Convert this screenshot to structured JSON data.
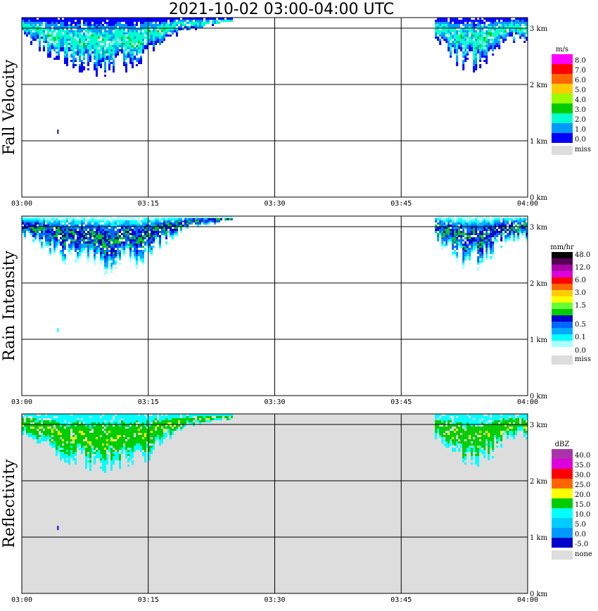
{
  "title": "2021-10-02   03:00-04:00 UTC",
  "x_ticks": [
    "03:00",
    "03:15",
    "03:30",
    "03:45",
    "04:00"
  ],
  "y_ticks": [
    "0 km",
    "1 km",
    "2 km",
    "3 km"
  ],
  "panels": [
    {
      "label": "Fall Velocity",
      "unit": "m/s",
      "background": "#ffffff",
      "legend": [
        {
          "label": "8.0",
          "color": "#ff00ff"
        },
        {
          "label": "7.0",
          "color": "#ff0000"
        },
        {
          "label": "6.0",
          "color": "#ff6600"
        },
        {
          "label": "5.0",
          "color": "#ffcc00"
        },
        {
          "label": "4.0",
          "color": "#99ff00"
        },
        {
          "label": "3.0",
          "color": "#00cc00"
        },
        {
          "label": "2.0",
          "color": "#00ffcc"
        },
        {
          "label": "1.0",
          "color": "#0099ff"
        },
        {
          "label": "0.0",
          "color": "#0000ff"
        }
      ],
      "miss_label": "miss",
      "miss_color": "#dddddd"
    },
    {
      "label": "Rain Intensity",
      "unit": "mm/hr",
      "background": "#ffffff",
      "legend": [
        {
          "label": "48.0",
          "color": "#000000"
        },
        {
          "label": "",
          "color": "#550055"
        },
        {
          "label": "12.0",
          "color": "#aa00aa"
        },
        {
          "label": "",
          "color": "#dd00dd"
        },
        {
          "label": "6.0",
          "color": "#ff0000"
        },
        {
          "label": "",
          "color": "#ff6600"
        },
        {
          "label": "3.0",
          "color": "#ffcc00"
        },
        {
          "label": "",
          "color": "#ffff00"
        },
        {
          "label": "1.5",
          "color": "#66ff33"
        },
        {
          "label": "",
          "color": "#00cc00"
        },
        {
          "label": "",
          "color": "#0000cc"
        },
        {
          "label": "0.5",
          "color": "#0066ff"
        },
        {
          "label": "",
          "color": "#00aaff"
        },
        {
          "label": "0.1",
          "color": "#00ffff"
        },
        {
          "label": "",
          "color": "#aaffff"
        }
      ],
      "zero_label": "0.0",
      "miss_label": "miss",
      "miss_color": "#dddddd"
    },
    {
      "label": "Reflectivity",
      "unit": "dBZ",
      "background": "#dddddd",
      "legend": [
        {
          "label": "40.0",
          "color": "#aa33aa"
        },
        {
          "label": "35.0",
          "color": "#dd00dd"
        },
        {
          "label": "30.0",
          "color": "#ff0000"
        },
        {
          "label": "25.0",
          "color": "#ff6600"
        },
        {
          "label": "20.0",
          "color": "#ffff00"
        },
        {
          "label": "15.0",
          "color": "#00cc00"
        },
        {
          "label": "10.0",
          "color": "#00ffff"
        },
        {
          "label": "5.0",
          "color": "#00ccff"
        },
        {
          "label": "0.0",
          "color": "#0099ff"
        },
        {
          "label": "-5.0",
          "color": "#0000cc"
        }
      ],
      "miss_label": "none",
      "miss_color": "#dddddd"
    }
  ],
  "chart_data": {
    "type": "heatmap",
    "title": "2021-10-02   03:00-04:00 UTC",
    "x_range": [
      "03:00",
      "04:00"
    ],
    "y_range_km": [
      0,
      3.2
    ],
    "grid": true,
    "legend_placement": "right",
    "echo_regions": [
      {
        "name": "precipitation",
        "time_start": "03:00",
        "time_end": "03:25",
        "top_km": 3.2,
        "base_km": 2.3
      },
      {
        "name": "precipitation",
        "time_start": "03:50",
        "time_end": "04:00",
        "top_km": 3.2,
        "base_km": 2.3
      },
      {
        "name": "isolated",
        "time": "03:04",
        "height_km": 1.2
      }
    ]
  }
}
